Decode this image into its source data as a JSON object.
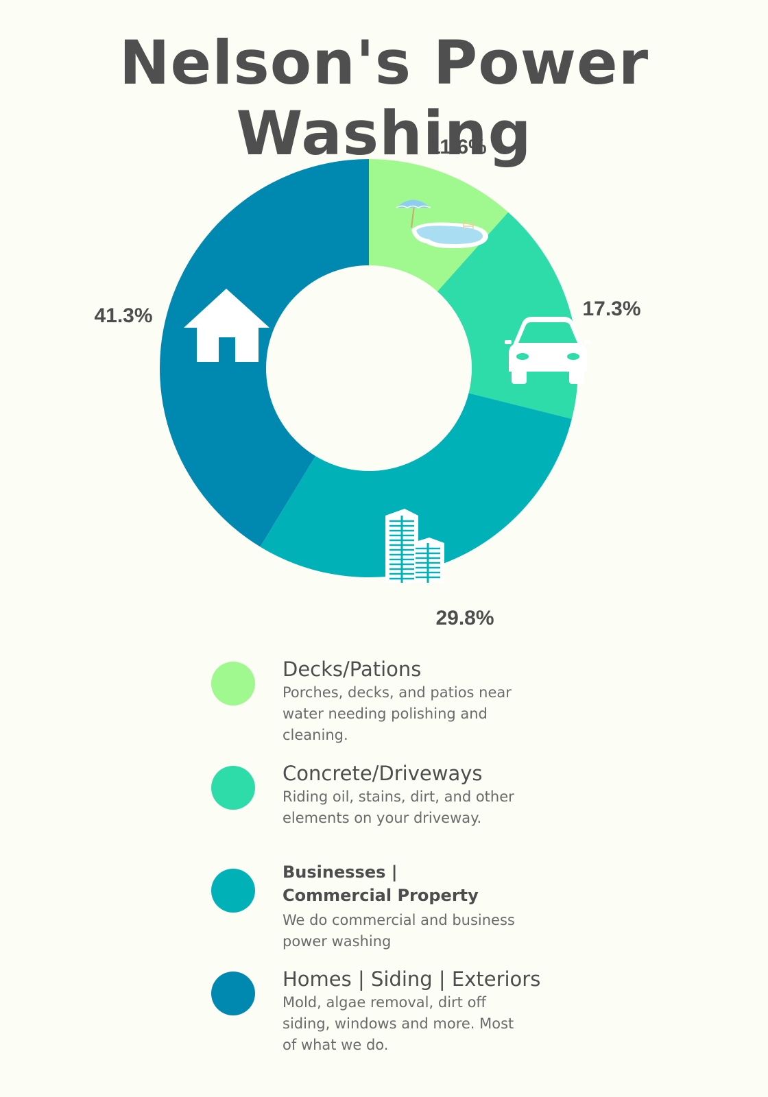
{
  "title": "Nelson's Power Washing",
  "chart_data": {
    "type": "pie",
    "variant": "donut",
    "title": "Nelson's Power Washing",
    "slices": [
      {
        "label": "Decks/Pations",
        "value": 11.6,
        "value_label": "11.6%",
        "color": "#a0f98e",
        "icon": "pool-umbrella-icon"
      },
      {
        "label": "Concrete/Driveways",
        "value": 17.3,
        "value_label": "17.3%",
        "color": "#2edcaa",
        "icon": "car-icon"
      },
      {
        "label": "Businesses | Commercial Property",
        "value": 29.8,
        "value_label": "29.8%",
        "color": "#00b1b7",
        "icon": "office-buildings-icon"
      },
      {
        "label": "Homes | Siding | Exteriors",
        "value": 41.3,
        "value_label": "41.3%",
        "color": "#0089b0",
        "icon": "house-icon"
      }
    ],
    "start": "top",
    "direction": "clockwise",
    "legend_position": "bottom"
  },
  "legend": [
    {
      "title": "Decks/Pations",
      "description": "Porches, decks, and patios near water needing polishing and cleaning.",
      "color": "#a0f98e"
    },
    {
      "title": "Concrete/Driveways",
      "description": "Riding oil, stains, dirt, and other elements on your driveway.",
      "color": "#2edcaa"
    },
    {
      "title": "Businesses | Commercial Property",
      "description": "We do commercial and business power washing",
      "color": "#00b1b7"
    },
    {
      "title": "Homes | Siding | Exteriors",
      "description": "Mold, algae removal, dirt off siding, windows and more. Most of what we do.",
      "color": "#0089b0"
    }
  ]
}
